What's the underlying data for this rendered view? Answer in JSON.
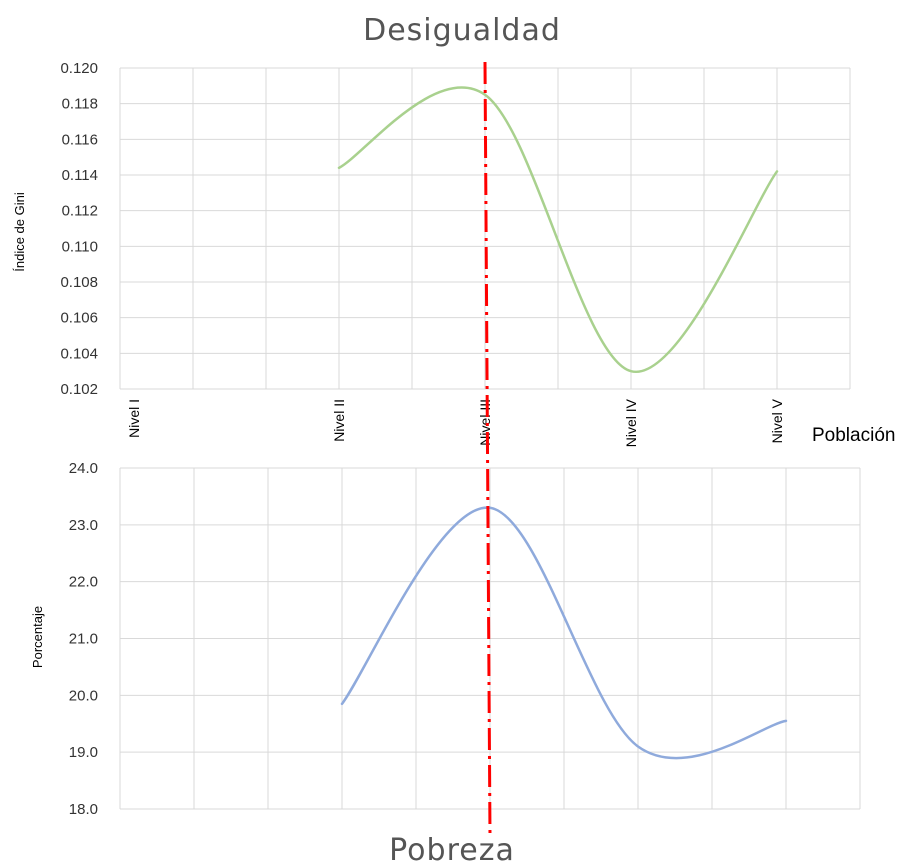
{
  "chart_data": [
    {
      "type": "line",
      "title": "Desigualdad",
      "ylabel": "Índice de Gini",
      "xlabel": "Población",
      "categories": [
        "Nivel I",
        "Nivel II",
        "Nivel III",
        "Nivel IV",
        "Nivel V"
      ],
      "ylim": [
        0.102,
        0.12
      ],
      "yticks": [
        "0.102",
        "0.104",
        "0.106",
        "0.108",
        "0.110",
        "0.112",
        "0.114",
        "0.116",
        "0.118",
        "0.120"
      ],
      "grid": true,
      "series": [
        {
          "values": [
            null,
            0.1144,
            0.1185,
            0.103,
            0.1142
          ],
          "color": "#a9d18e",
          "smooth": true
        }
      ],
      "reference_line": {
        "category": "Nivel III",
        "color": "#ff0000",
        "style": "dash-dot"
      }
    },
    {
      "type": "line",
      "title": "Pobreza",
      "ylabel": "Porcentaje",
      "ylim": [
        18.0,
        24.0
      ],
      "yticks": [
        "18.0",
        "19.0",
        "20.0",
        "21.0",
        "22.0",
        "23.0",
        "24.0"
      ],
      "grid": true,
      "series": [
        {
          "values": [
            null,
            19.85,
            23.3,
            19.1,
            19.55
          ],
          "color": "#8faadc",
          "smooth": true
        }
      ],
      "reference_line": {
        "category": "Nivel III",
        "color": "#ff0000",
        "style": "dash-dot"
      }
    }
  ]
}
